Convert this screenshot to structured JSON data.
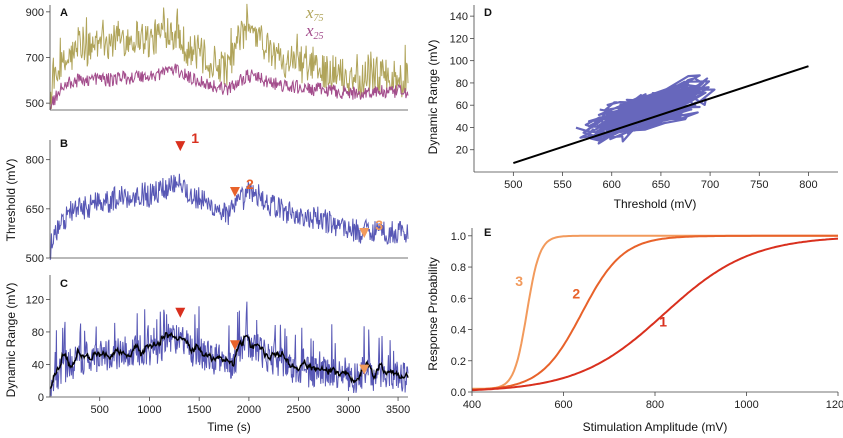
{
  "chart_data": [
    {
      "panel": "A",
      "type": "line",
      "xlabel": "",
      "ylabel": "",
      "xlim": [
        0,
        3600
      ],
      "ylim": [
        470,
        930
      ],
      "yticks": [
        500,
        700,
        900
      ],
      "legend": [
        {
          "name": "x",
          "sub": "75",
          "color": "#b0a45a"
        },
        {
          "name": "x",
          "sub": "25",
          "color": "#a34d8c"
        }
      ],
      "series": [
        {
          "name": "x75",
          "color": "#b0a45a",
          "x": [
            0,
            100,
            200,
            300,
            400,
            500,
            600,
            700,
            800,
            900,
            1000,
            1100,
            1200,
            1300,
            1400,
            1500,
            1600,
            1700,
            1800,
            1900,
            2000,
            2100,
            2200,
            2300,
            2400,
            2500,
            2600,
            2700,
            2800,
            2900,
            3000,
            3100,
            3200,
            3300,
            3400,
            3500,
            3600
          ],
          "values": [
            520,
            640,
            700,
            730,
            740,
            770,
            760,
            790,
            780,
            800,
            770,
            800,
            830,
            790,
            730,
            720,
            680,
            670,
            650,
            780,
            820,
            800,
            720,
            700,
            690,
            680,
            640,
            650,
            640,
            630,
            610,
            600,
            620,
            630,
            600,
            610,
            590
          ]
        },
        {
          "name": "x25",
          "color": "#a34d8c",
          "x": [
            0,
            100,
            200,
            300,
            400,
            500,
            600,
            700,
            800,
            900,
            1000,
            1100,
            1200,
            1300,
            1400,
            1500,
            1600,
            1700,
            1800,
            1900,
            2000,
            2100,
            2200,
            2300,
            2400,
            2500,
            2600,
            2700,
            2800,
            2900,
            3000,
            3100,
            3200,
            3300,
            3400,
            3500,
            3600
          ],
          "values": [
            480,
            560,
            590,
            600,
            605,
            610,
            600,
            615,
            610,
            620,
            615,
            630,
            650,
            640,
            610,
            600,
            580,
            570,
            560,
            600,
            620,
            610,
            590,
            580,
            570,
            570,
            560,
            560,
            555,
            550,
            545,
            540,
            548,
            552,
            545,
            550,
            540
          ]
        }
      ]
    },
    {
      "panel": "B",
      "type": "line",
      "xlabel": "",
      "ylabel": "Threshold (mV)",
      "xlim": [
        0,
        3600
      ],
      "ylim": [
        500,
        860
      ],
      "yticks": [
        500,
        650,
        800
      ],
      "series": [
        {
          "name": "Threshold",
          "color": "#5757b5",
          "x": [
            0,
            100,
            200,
            300,
            400,
            500,
            600,
            700,
            800,
            900,
            1000,
            1100,
            1200,
            1300,
            1400,
            1500,
            1600,
            1700,
            1800,
            1900,
            2000,
            2100,
            2200,
            2300,
            2400,
            2500,
            2600,
            2700,
            2800,
            2900,
            3000,
            3100,
            3200,
            3300,
            3400,
            3500,
            3600
          ],
          "values": [
            530,
            600,
            640,
            650,
            660,
            680,
            670,
            690,
            685,
            700,
            690,
            705,
            720,
            745,
            690,
            680,
            660,
            650,
            630,
            670,
            700,
            690,
            665,
            650,
            640,
            630,
            615,
            620,
            610,
            600,
            590,
            580,
            585,
            590,
            575,
            580,
            570
          ]
        }
      ],
      "markers": [
        {
          "label": "1",
          "x": 1310,
          "y": 820,
          "color": "#d9301e"
        },
        {
          "label": "2",
          "x": 1860,
          "y": 680,
          "color": "#e8622a"
        },
        {
          "label": "3",
          "x": 3160,
          "y": 555,
          "color": "#f29a5c"
        }
      ]
    },
    {
      "panel": "C",
      "type": "line",
      "xlabel": "Time (s)",
      "ylabel": "Dynamic Range (mV)",
      "xlim": [
        0,
        3600
      ],
      "ylim": [
        0,
        150
      ],
      "yticks": [
        0,
        40,
        80,
        120
      ],
      "xticks": [
        500,
        1000,
        1500,
        2000,
        2500,
        3000,
        3500
      ],
      "series": [
        {
          "name": "Dynamic Range",
          "color": "#5757b5",
          "x": [
            0,
            100,
            200,
            300,
            400,
            500,
            600,
            700,
            800,
            900,
            1000,
            1100,
            1200,
            1300,
            1400,
            1500,
            1600,
            1700,
            1800,
            1900,
            2000,
            2100,
            2200,
            2300,
            2400,
            2500,
            2600,
            2700,
            2800,
            2900,
            3000,
            3100,
            3200,
            3300,
            3400,
            3500,
            3600
          ],
          "values": [
            10,
            30,
            40,
            45,
            48,
            50,
            52,
            55,
            54,
            58,
            57,
            60,
            65,
            75,
            58,
            55,
            50,
            45,
            38,
            55,
            65,
            60,
            48,
            42,
            38,
            35,
            30,
            32,
            30,
            28,
            26,
            24,
            26,
            28,
            25,
            27,
            24
          ]
        },
        {
          "name": "Dynamic Range (smoothed)",
          "color": "#000000",
          "x": [
            0,
            100,
            200,
            300,
            400,
            500,
            600,
            700,
            800,
            900,
            1000,
            1100,
            1200,
            1300,
            1400,
            1500,
            1600,
            1700,
            1800,
            1900,
            2000,
            2100,
            2200,
            2300,
            2400,
            2500,
            2600,
            2700,
            2800,
            2900,
            3000,
            3100,
            3200,
            3300,
            3400,
            3500,
            3600
          ],
          "values": [
            10,
            30,
            40,
            45,
            48,
            50,
            52,
            55,
            54,
            58,
            57,
            60,
            65,
            75,
            58,
            55,
            50,
            45,
            38,
            55,
            65,
            60,
            48,
            42,
            38,
            35,
            30,
            32,
            30,
            28,
            26,
            24,
            26,
            28,
            25,
            27,
            24
          ]
        }
      ],
      "markers": [
        {
          "label": "",
          "x": 1310,
          "y": 95,
          "color": "#d9301e"
        },
        {
          "label": "",
          "x": 1860,
          "y": 55,
          "color": "#e8622a"
        },
        {
          "label": "",
          "x": 3160,
          "y": 25,
          "color": "#f29a5c"
        }
      ]
    },
    {
      "panel": "D",
      "type": "scatter",
      "xlabel": "Threshold (mV)",
      "ylabel": "Dynamic Range (mV)",
      "xlim": [
        460,
        830
      ],
      "ylim": [
        0,
        150
      ],
      "xticks": [
        500,
        550,
        600,
        650,
        700,
        750,
        800
      ],
      "yticks": [
        20,
        40,
        60,
        80,
        100,
        120,
        140
      ],
      "point_color": "#5757b5",
      "fit_line": {
        "x": [
          500,
          800
        ],
        "y": [
          8,
          95
        ],
        "color": "#000000"
      }
    },
    {
      "panel": "E",
      "type": "line",
      "xlabel": "Stimulation Amplitude (mV)",
      "ylabel": "Response Probability",
      "xlim": [
        400,
        1200
      ],
      "ylim": [
        0,
        1.05
      ],
      "xticks": [
        400,
        600,
        800,
        1000,
        1200
      ],
      "yticks": [
        0.0,
        0.2,
        0.4,
        0.6,
        0.8,
        1.0
      ],
      "ytick_labels": [
        "0.0",
        "0.2",
        "0.4",
        "0.6",
        "0.8",
        "1.0"
      ],
      "series": [
        {
          "name": "3",
          "color": "#f29a5c",
          "midpoint": 520,
          "width": 14,
          "floor": 0.02
        },
        {
          "name": "2",
          "color": "#e8622a",
          "midpoint": 640,
          "width": 45,
          "floor": 0.01
        },
        {
          "name": "1",
          "color": "#d9301e",
          "midpoint": 820,
          "width": 95,
          "floor": 0.0
        }
      ],
      "labels": [
        {
          "text": "3",
          "x": 525,
          "y": 0.68,
          "color": "#f29a5c"
        },
        {
          "text": "2",
          "x": 650,
          "y": 0.6,
          "color": "#e8622a"
        },
        {
          "text": "1",
          "x": 840,
          "y": 0.42,
          "color": "#d9301e"
        }
      ]
    }
  ]
}
